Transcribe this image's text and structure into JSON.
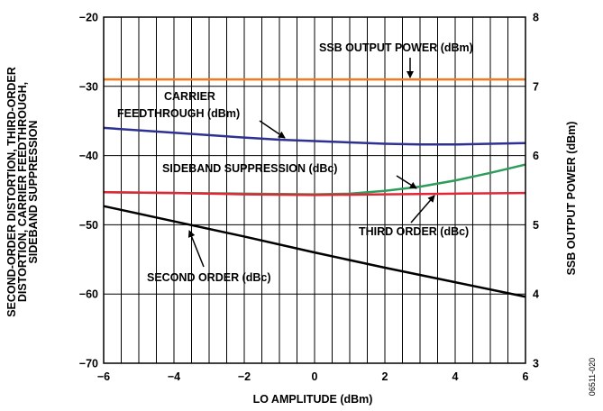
{
  "chart_data": {
    "type": "line",
    "xlabel": "LO AMPLITUDE (dBm)",
    "ylabel_left": "SECOND-ORDER DISTORTION, THIRD-ORDER DISTORTION, CARRIER FEEDTHROUGH, SIDEBAND SUPPRESSION",
    "ylabel_left_lines": [
      "SECOND-ORDER DISTORTION, THIRD-ORDER",
      "DISTORTION, CARRIER FEEDTHROUGH,",
      "SIDEBAND SUPPRESSION"
    ],
    "ylabel_right": "SSB OUTPUT POWER (dBm)",
    "xlim": [
      -6,
      6
    ],
    "ylim_left": [
      -70,
      -20
    ],
    "ylim_right": [
      3,
      8
    ],
    "x_ticks": [
      "−6",
      "−4",
      "−2",
      "0",
      "2",
      "4",
      "6"
    ],
    "y_left_ticks": [
      "−70",
      "−60",
      "−50",
      "−40",
      "−30",
      "−20"
    ],
    "y_right_ticks": [
      "3",
      "4",
      "5",
      "6",
      "7",
      "8"
    ],
    "grid": true,
    "series": [
      {
        "name": "SSB OUTPUT POWER (dBm)",
        "axis": "right",
        "color": "#f47a20",
        "x": [
          -6,
          -4,
          -2,
          0,
          2,
          4,
          6
        ],
        "y": [
          7.1,
          7.1,
          7.1,
          7.1,
          7.1,
          7.1,
          7.1
        ]
      },
      {
        "name": "CARRIER FEEDTHROUGH (dBm)",
        "axis": "left",
        "color": "#2e3192",
        "x": [
          -6,
          -4,
          -2,
          -1,
          0,
          1,
          2,
          3,
          4,
          5,
          6
        ],
        "y": [
          -36.0,
          -36.7,
          -37.4,
          -37.7,
          -37.9,
          -38.1,
          -38.3,
          -38.4,
          -38.4,
          -38.3,
          -38.2
        ]
      },
      {
        "name": "SIDEBAND SUPPRESSION (dBc)",
        "axis": "left",
        "color": "#2e9c5a",
        "x": [
          -6,
          -4,
          -2,
          0,
          1,
          2,
          3,
          4,
          5,
          6
        ],
        "y": [
          -45.3,
          -45.4,
          -45.5,
          -45.6,
          -45.5,
          -45.1,
          -44.5,
          -43.6,
          -42.5,
          -41.3
        ]
      },
      {
        "name": "THIRD ORDER (dBc)",
        "axis": "left",
        "color": "#e32636",
        "x": [
          -6,
          -4,
          -2,
          0,
          2,
          4,
          6
        ],
        "y": [
          -45.3,
          -45.4,
          -45.6,
          -45.7,
          -45.6,
          -45.5,
          -45.4
        ]
      },
      {
        "name": "SECOND ORDER (dBc)",
        "axis": "left",
        "color": "#000000",
        "x": [
          -6,
          -4,
          -2,
          0,
          2,
          4,
          6
        ],
        "y": [
          -47.3,
          -49.5,
          -51.7,
          -54.0,
          -56.2,
          -58.3,
          -60.4
        ]
      }
    ],
    "annotations": [
      {
        "text": "SSB OUTPUT POWER (dBm)"
      },
      {
        "text_lines": [
          "CARRIER",
          "FEEDTHROUGH (dBm)"
        ]
      },
      {
        "text": "SIDEBAND SUPPRESSION (dBc)"
      },
      {
        "text": "THIRD ORDER (dBc)"
      },
      {
        "text": "SECOND ORDER (dBc)"
      }
    ]
  },
  "figure_code": "06511-020"
}
